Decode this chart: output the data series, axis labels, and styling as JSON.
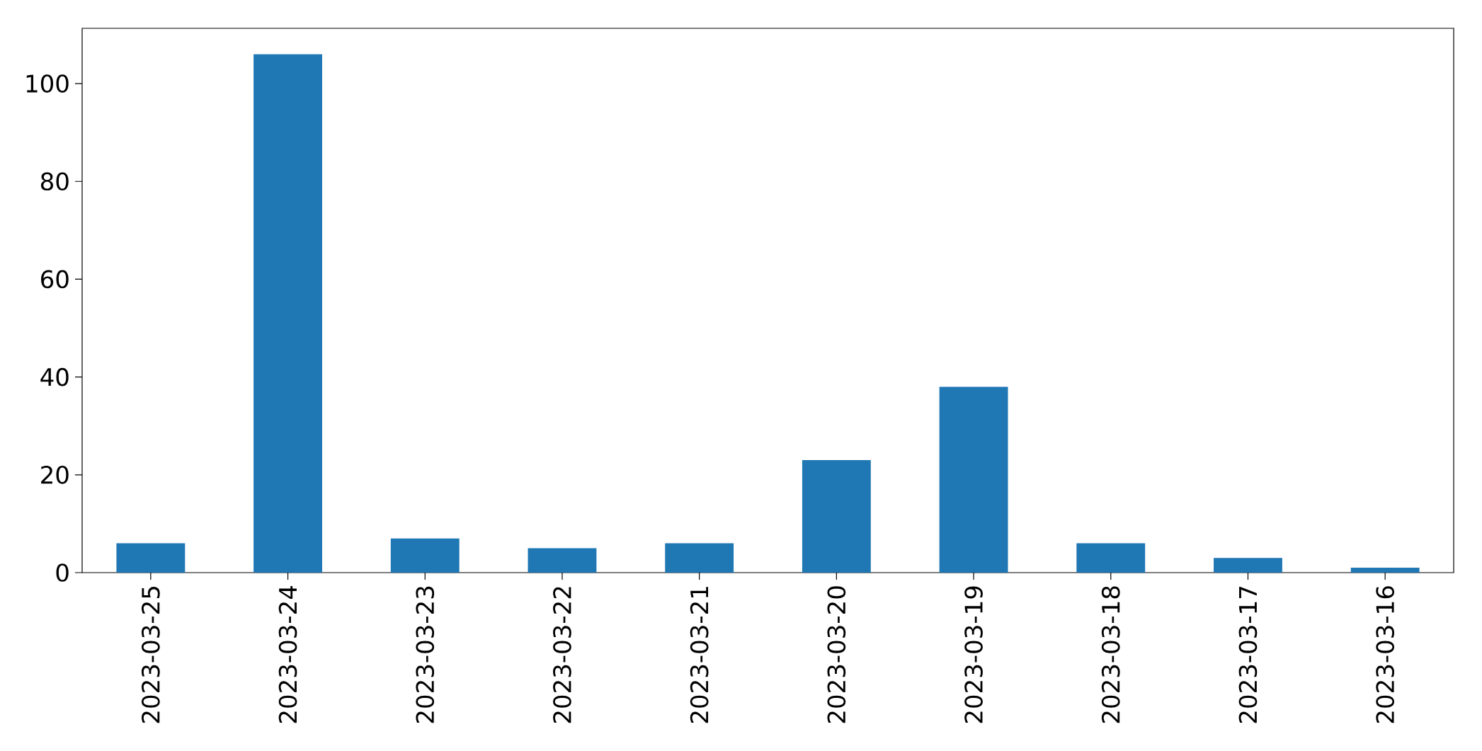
{
  "chart_data": {
    "type": "bar",
    "categories": [
      "2023-03-25",
      "2023-03-24",
      "2023-03-23",
      "2023-03-22",
      "2023-03-21",
      "2023-03-20",
      "2023-03-19",
      "2023-03-18",
      "2023-03-17",
      "2023-03-16"
    ],
    "values": [
      6,
      106,
      7,
      5,
      6,
      23,
      38,
      6,
      3,
      1
    ],
    "color": "#1f77b4",
    "ylim": [
      0,
      111.3
    ],
    "yticks": [
      0,
      20,
      40,
      60,
      80,
      100
    ]
  }
}
